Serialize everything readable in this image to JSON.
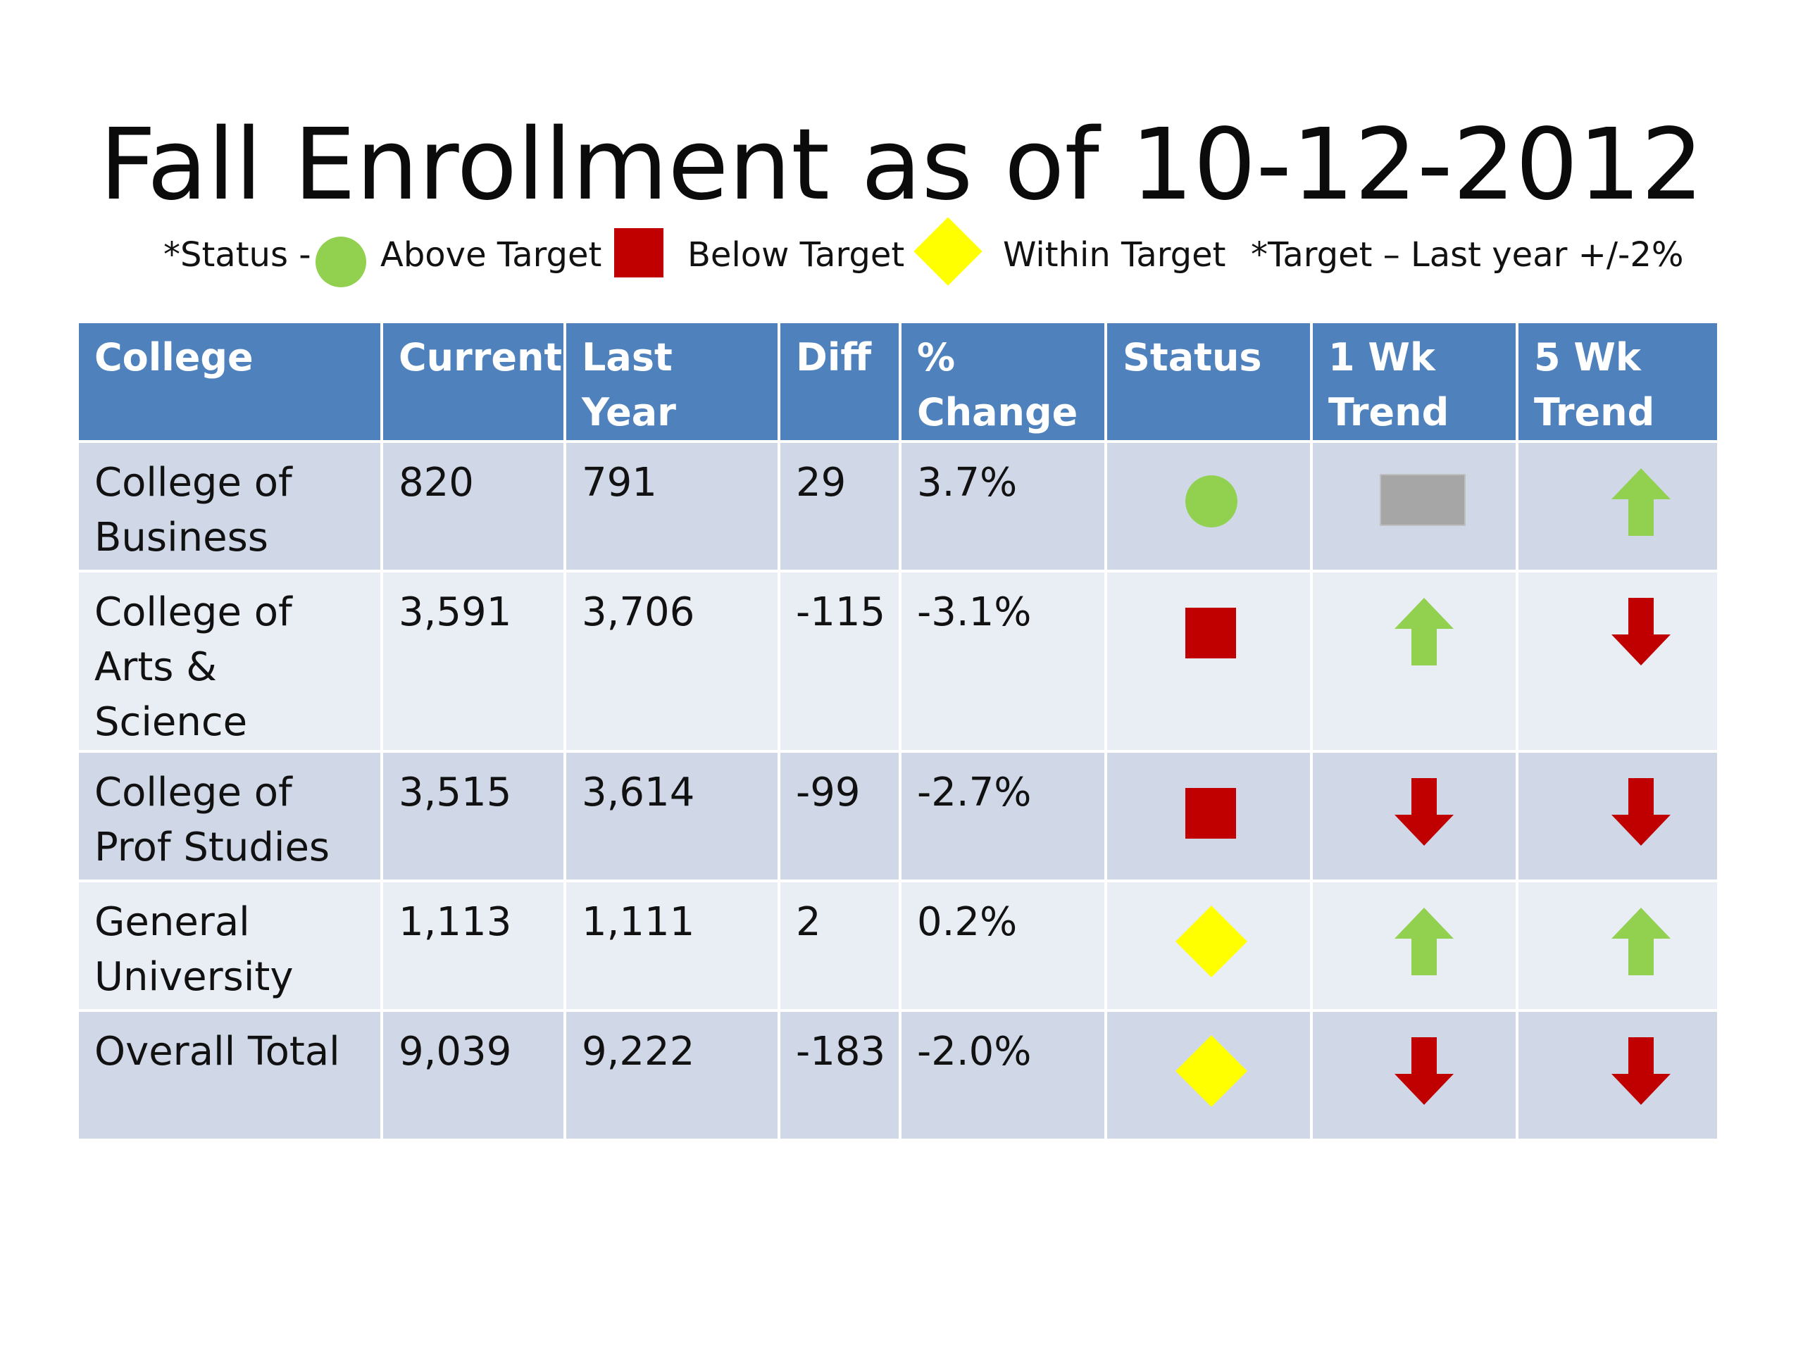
{
  "title": "Fall Enrollment as of 10-12-2012",
  "legend": {
    "status_prefix": "*Status -",
    "above": "Above Target",
    "below": "Below Target",
    "within": "Within Target",
    "target_note": "*Target – Last year +/-2%"
  },
  "colors": {
    "header_bg": "#4f81bd",
    "row_odd": "#d0d8e8",
    "row_even": "#e9edf4",
    "above_green": "#92d050",
    "below_red": "#c00000",
    "within_yellow": "#ffff00",
    "flat_gray": "#a6a6a6"
  },
  "table": {
    "headers": [
      "College",
      "Current",
      "Last Year",
      "Diff",
      "% Change",
      "Status",
      "1 Wk Trend",
      "5 Wk Trend"
    ],
    "rows": [
      {
        "college": "College of Business",
        "current": "820",
        "last_year": "791",
        "diff": "29",
        "pct_change": "3.7%",
        "status": "above",
        "wk1": "flat",
        "wk5": "up"
      },
      {
        "college": "College of Arts & Science",
        "current": "3,591",
        "last_year": "3,706",
        "diff": "-115",
        "pct_change": "-3.1%",
        "status": "below",
        "wk1": "up",
        "wk5": "down"
      },
      {
        "college": "College of Prof Studies",
        "current": "3,515",
        "last_year": "3,614",
        "diff": "-99",
        "pct_change": "-2.7%",
        "status": "below",
        "wk1": "down",
        "wk5": "down"
      },
      {
        "college": "General University",
        "current": "1,113",
        "last_year": "1,111",
        "diff": "2",
        "pct_change": "0.2%",
        "status": "within",
        "wk1": "up",
        "wk5": "up"
      },
      {
        "college": "Overall Total",
        "current": "9,039",
        "last_year": "9,222",
        "diff": "-183",
        "pct_change": "-2.0%",
        "status": "within",
        "wk1": "down",
        "wk5": "down"
      }
    ]
  }
}
